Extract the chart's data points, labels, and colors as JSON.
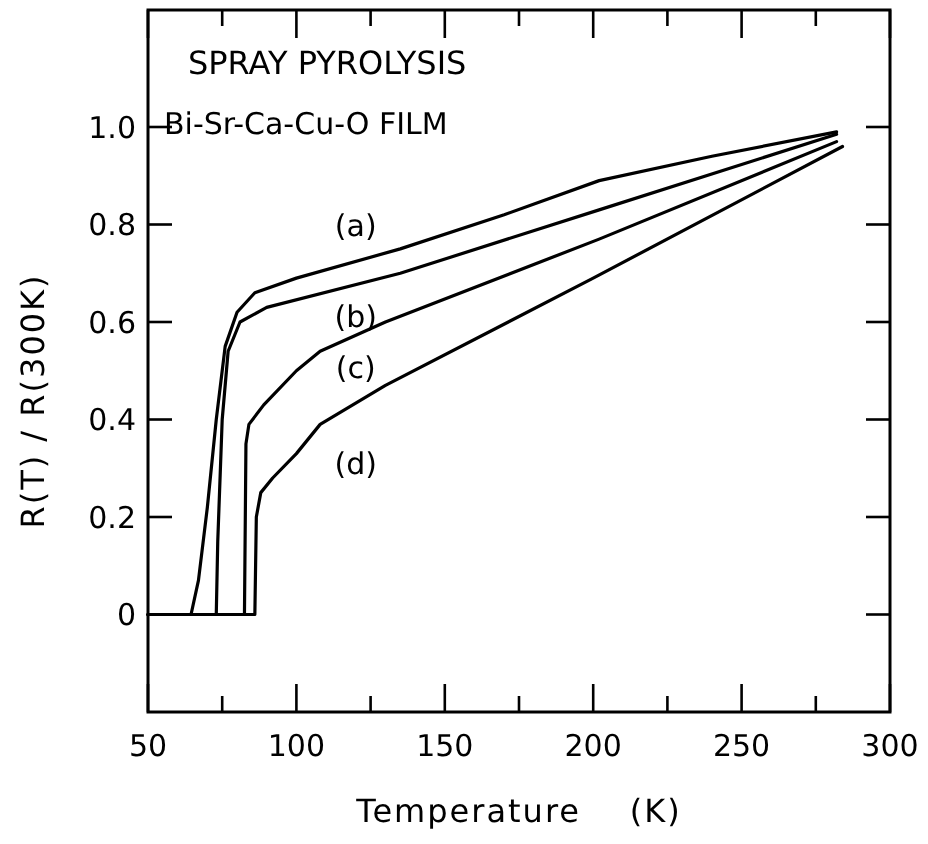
{
  "chart_data": {
    "type": "line",
    "title": "SPRAY PYROLYSIS",
    "subtitle": "Bi-Sr-Ca-Cu-O FILM",
    "xlabel": "Temperature    (K)",
    "ylabel": "R(T) / R(300K)",
    "xlim": [
      50,
      300
    ],
    "ylim": [
      -0.2,
      1.24
    ],
    "xticks": [
      50,
      {
        "value": 75,
        "label": null
      },
      100,
      {
        "value": 125,
        "label": null
      },
      150,
      {
        "value": 175,
        "label": null
      },
      200,
      {
        "value": 225,
        "label": null
      },
      250,
      {
        "value": 275,
        "label": null
      },
      300
    ],
    "yticks": [
      0,
      0.2,
      0.4,
      0.6,
      0.8,
      {
        "value": 1,
        "label": "1.0"
      }
    ],
    "grid": false,
    "marker": "none",
    "line_style": "solid",
    "series": [
      {
        "name": "(a)",
        "color": "#000000",
        "x": [
          50,
          64.5,
          67,
          70,
          73,
          76,
          80,
          86,
          100,
          135,
          170,
          202,
          240,
          282
        ],
        "values": [
          0,
          0,
          0.07,
          0.22,
          0.4,
          0.55,
          0.62,
          0.66,
          0.69,
          0.75,
          0.82,
          0.89,
          0.94,
          0.99
        ]
      },
      {
        "name": "(b)",
        "color": "#000000",
        "x": [
          50,
          73,
          73.5,
          75,
          77,
          81,
          90,
          135,
          202,
          282
        ],
        "values": [
          0,
          0,
          0.15,
          0.4,
          0.54,
          0.6,
          0.63,
          0.7,
          0.83,
          0.985
        ]
      },
      {
        "name": "(c)",
        "color": "#000000",
        "x": [
          50,
          82.5,
          83,
          84,
          89,
          100,
          108,
          130,
          202,
          282
        ],
        "values": [
          0,
          0,
          0.35,
          0.39,
          0.43,
          0.5,
          0.54,
          0.6,
          0.77,
          0.97
        ]
      },
      {
        "name": "(d)",
        "color": "#000000",
        "x": [
          50,
          86,
          86.5,
          88,
          92,
          100,
          108,
          130,
          200,
          284
        ],
        "values": [
          0,
          0,
          0.2,
          0.25,
          0.28,
          0.33,
          0.39,
          0.47,
          0.69,
          0.96
        ]
      }
    ]
  }
}
